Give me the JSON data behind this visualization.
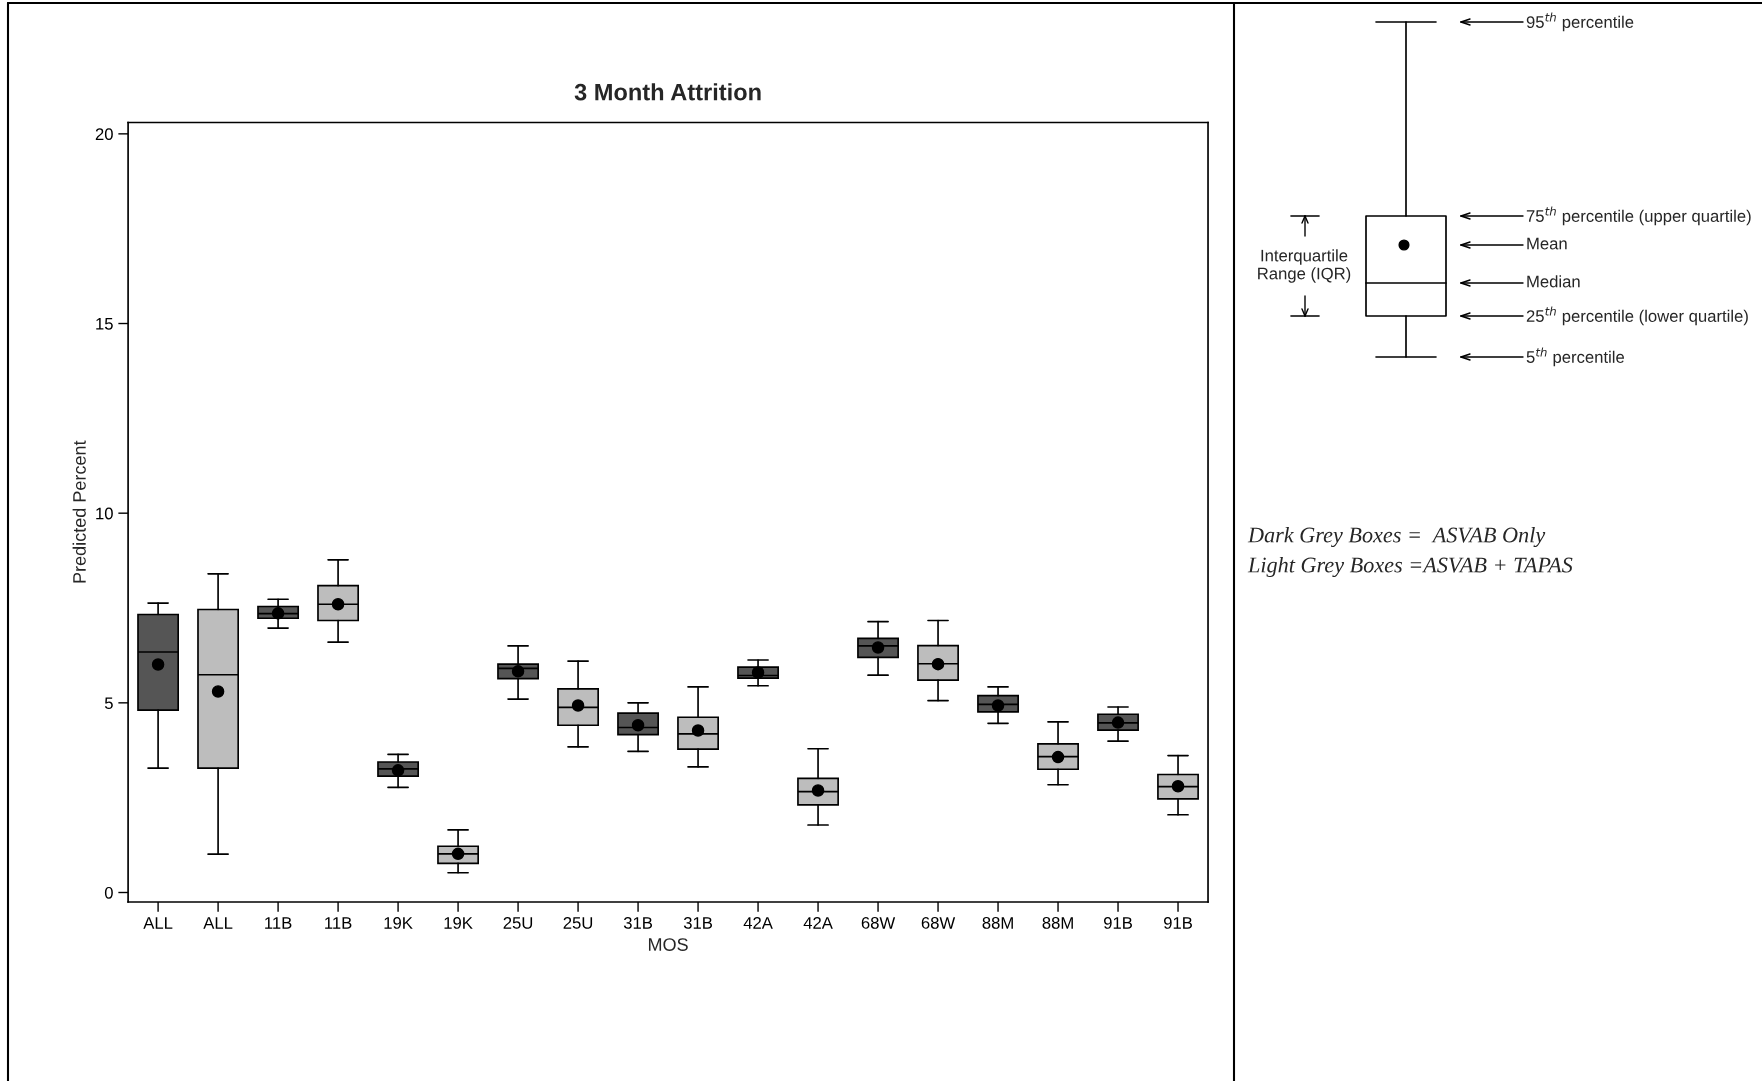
{
  "chart_data": [
    {
      "type": "box",
      "title": "3 Month Attrition",
      "xlabel": "MOS",
      "ylabel": "Predicted Percent",
      "categories": [
        "ALL",
        "ALL",
        "11B",
        "11B",
        "19K",
        "19K",
        "25U",
        "25U",
        "31B",
        "31B",
        "42A",
        "42A",
        "68W",
        "68W",
        "88M",
        "88M",
        "91B",
        "91B"
      ],
      "colors": [
        "#555555",
        "#bdbdbd",
        "#555555",
        "#bdbdbd",
        "#555555",
        "#bdbdbd",
        "#555555",
        "#bdbdbd",
        "#555555",
        "#bdbdbd",
        "#555555",
        "#bdbdbd",
        "#555555",
        "#bdbdbd",
        "#555555",
        "#bdbdbd",
        "#555555",
        "#bdbdbd"
      ],
      "boxes": [
        {
          "low": 3.28,
          "q1": 4.81,
          "median": 6.34,
          "q3": 7.33,
          "high": 7.63,
          "mean": 6.01
        },
        {
          "low": 1.01,
          "q1": 3.28,
          "median": 5.74,
          "q3": 7.46,
          "high": 8.4,
          "mean": 5.3
        },
        {
          "low": 6.97,
          "q1": 7.23,
          "median": 7.35,
          "q3": 7.54,
          "high": 7.73,
          "mean": 7.36
        },
        {
          "low": 6.6,
          "q1": 7.17,
          "median": 7.6,
          "q3": 8.09,
          "high": 8.77,
          "mean": 7.6
        },
        {
          "low": 2.77,
          "q1": 3.07,
          "median": 3.26,
          "q3": 3.44,
          "high": 3.64,
          "mean": 3.22
        },
        {
          "low": 0.52,
          "q1": 0.77,
          "median": 1.02,
          "q3": 1.22,
          "high": 1.65,
          "mean": 1.02
        },
        {
          "low": 5.1,
          "q1": 5.64,
          "median": 5.91,
          "q3": 6.02,
          "high": 6.5,
          "mean": 5.83
        },
        {
          "low": 3.84,
          "q1": 4.41,
          "median": 4.88,
          "q3": 5.37,
          "high": 6.1,
          "mean": 4.93
        },
        {
          "low": 3.72,
          "q1": 4.16,
          "median": 4.35,
          "q3": 4.73,
          "high": 5.0,
          "mean": 4.41
        },
        {
          "low": 3.31,
          "q1": 3.78,
          "median": 4.18,
          "q3": 4.62,
          "high": 5.42,
          "mean": 4.27
        },
        {
          "low": 5.45,
          "q1": 5.65,
          "median": 5.72,
          "q3": 5.94,
          "high": 6.13,
          "mean": 5.8
        },
        {
          "low": 1.78,
          "q1": 2.31,
          "median": 2.66,
          "q3": 3.01,
          "high": 3.79,
          "mean": 2.69
        },
        {
          "low": 5.73,
          "q1": 6.2,
          "median": 6.5,
          "q3": 6.7,
          "high": 7.14,
          "mean": 6.46
        },
        {
          "low": 5.06,
          "q1": 5.6,
          "median": 6.03,
          "q3": 6.51,
          "high": 7.17,
          "mean": 6.02
        },
        {
          "low": 4.46,
          "q1": 4.76,
          "median": 4.96,
          "q3": 5.19,
          "high": 5.42,
          "mean": 4.93
        },
        {
          "low": 2.84,
          "q1": 3.25,
          "median": 3.58,
          "q3": 3.92,
          "high": 4.5,
          "mean": 3.57
        },
        {
          "low": 3.99,
          "q1": 4.28,
          "median": 4.47,
          "q3": 4.7,
          "high": 4.89,
          "mean": 4.48
        },
        {
          "low": 2.05,
          "q1": 2.47,
          "median": 2.79,
          "q3": 3.11,
          "high": 3.61,
          "mean": 2.8
        }
      ],
      "ylim": [
        -0.25,
        20.3
      ],
      "yticks": [
        0,
        5,
        10,
        15,
        20
      ],
      "grid": false,
      "legend": false
    },
    {
      "type": "other",
      "annotations": [
        "95$^{th}$ percentile",
        "75$^{th}$ percentile (upper quartile)",
        "Mean",
        "Median",
        "25$^{th}$ percentile (lower quartile)",
        "5$^{th}$ percentile",
        "Interquartile\nRange (IQR)",
        "Dark Grey Boxes =  ASVAB Only",
        "Light Grey Boxes =ASVAB + TAPAS"
      ]
    }
  ]
}
